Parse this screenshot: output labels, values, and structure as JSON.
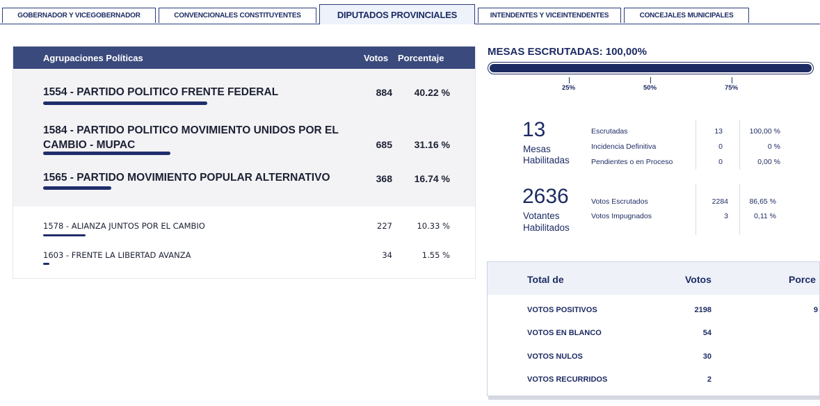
{
  "tabs": [
    {
      "label": "GOBERNADOR Y VICEGOBERNADOR",
      "active": false
    },
    {
      "label": "CONVENCIONALES CONSTITUYENTES",
      "active": false
    },
    {
      "label": "DIPUTADOS PROVINCIALES",
      "active": true
    },
    {
      "label": "INTENDENTES Y VICEINTENDENTES",
      "active": false
    },
    {
      "label": "CONCEJALES MUNICIPALES",
      "active": false
    }
  ],
  "results_table": {
    "headers": {
      "party": "Agrupaciones Políticas",
      "votes": "Votos",
      "percent": "Porcentaje"
    },
    "top_rows": [
      {
        "name": "1554 - PARTIDO POLITICO FRENTE FEDERAL",
        "votes": "884",
        "percent": "40.22 %",
        "share": 0.4022
      },
      {
        "name": "1584 - PARTIDO POLITICO MOVIMIENTO UNIDOS POR EL CAMBIO - MUPAC",
        "votes": "685",
        "percent": "31.16 %",
        "share": 0.3116
      },
      {
        "name": "1565 - PARTIDO MOVIMIENTO POPULAR ALTERNATIVO",
        "votes": "368",
        "percent": "16.74 %",
        "share": 0.1674
      }
    ],
    "other_rows": [
      {
        "name": "1578 - ALIANZA JUNTOS POR EL CAMBIO",
        "votes": "227",
        "percent": "10.33 %",
        "share": 0.1033
      },
      {
        "name": "1603 - FRENTE LA LIBERTAD AVANZA",
        "votes": "34",
        "percent": "1.55 %",
        "share": 0.0155
      }
    ]
  },
  "mesas": {
    "title": "MESAS ESCRUTADAS: 100,00%",
    "progress": 1.0,
    "ticks": [
      "25%",
      "50%",
      "75%"
    ],
    "habilitadas_num": "13",
    "habilitadas_lbl1": "Mesas",
    "habilitadas_lbl2": "Habilitadas",
    "stats": [
      {
        "label": "Escrutadas",
        "count": "13",
        "pct": "100,00 %"
      },
      {
        "label": "Incidencia Definitiva",
        "count": "0",
        "pct": "0 %"
      },
      {
        "label": "Pendientes o en Proceso",
        "count": "0",
        "pct": "0,00 %"
      }
    ]
  },
  "votantes": {
    "num": "2636",
    "lbl1": "Votantes",
    "lbl2": "Habilitados",
    "stats": [
      {
        "label": "Votos Escrutados",
        "count": "2284",
        "pct": "86,65 %"
      },
      {
        "label": "Votos Impugnados",
        "count": "3",
        "pct": "0,11 %"
      }
    ]
  },
  "totals": {
    "headers": {
      "total": "Total de",
      "votes": "Votos",
      "percent": "Porce"
    },
    "rows": [
      {
        "label": "VOTOS POSITIVOS",
        "votes": "2198",
        "pct": "9"
      },
      {
        "label": "VOTOS EN BLANCO",
        "votes": "54"
      },
      {
        "label": "VOTOS NULOS",
        "votes": "30"
      },
      {
        "label": "VOTOS RECURRIDOS",
        "votes": "2"
      }
    ]
  }
}
